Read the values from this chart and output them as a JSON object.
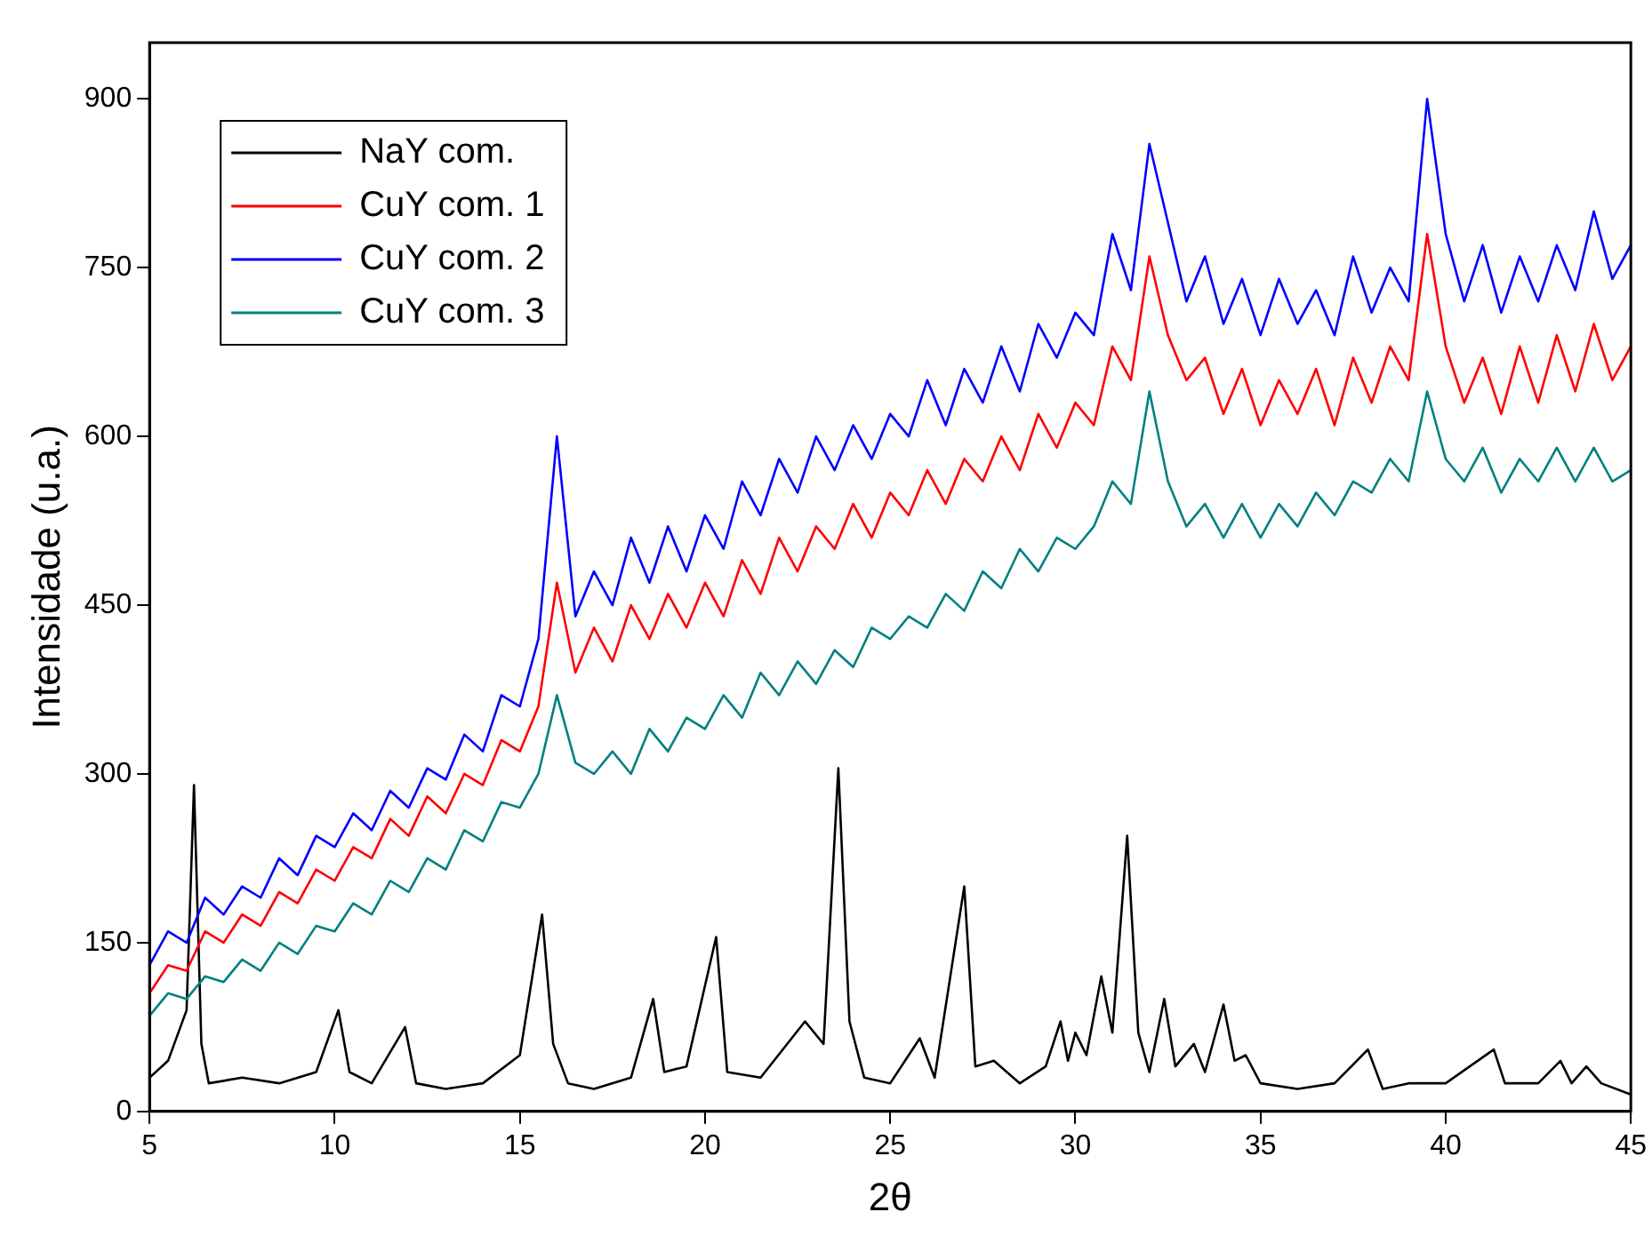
{
  "chart_data": {
    "type": "line",
    "xlabel": "2θ",
    "ylabel": "Intensidade (u.a.)",
    "xlim": [
      5,
      45
    ],
    "xticks": [
      5,
      10,
      15,
      20,
      25,
      30,
      35,
      40,
      45
    ],
    "ylim": [
      0,
      950
    ],
    "yticks": [
      0,
      150,
      300,
      450,
      600,
      750,
      900
    ],
    "grid": false,
    "legend": "top left",
    "marker": "none",
    "line_style": "solid",
    "series": [
      {
        "name": "NaY com.",
        "color": "#000000",
        "x": [
          5,
          5.5,
          6,
          6.2,
          6.4,
          6.6,
          7.5,
          8.5,
          9.5,
          10.1,
          10.4,
          11,
          11.9,
          12.2,
          13,
          14,
          15,
          15.6,
          15.9,
          16.3,
          17,
          18,
          18.6,
          18.9,
          19.5,
          20.3,
          20.6,
          21.5,
          22.7,
          23.2,
          23.6,
          23.9,
          24.3,
          25,
          25.8,
          26.2,
          27,
          27.3,
          27.8,
          28.5,
          29.2,
          29.6,
          29.8,
          30,
          30.3,
          30.7,
          31,
          31.4,
          31.7,
          32,
          32.4,
          32.7,
          33.2,
          33.5,
          34,
          34.3,
          34.6,
          35,
          36,
          37,
          37.9,
          38.3,
          39,
          40,
          41.3,
          41.6,
          42.5,
          43.1,
          43.4,
          43.8,
          44.2,
          45
        ],
        "values": [
          30,
          45,
          90,
          290,
          60,
          25,
          30,
          25,
          35,
          90,
          35,
          25,
          75,
          25,
          20,
          25,
          50,
          175,
          60,
          25,
          20,
          30,
          100,
          35,
          40,
          155,
          35,
          30,
          80,
          60,
          305,
          80,
          30,
          25,
          65,
          30,
          200,
          40,
          45,
          25,
          40,
          80,
          45,
          70,
          50,
          120,
          70,
          245,
          70,
          35,
          100,
          40,
          60,
          35,
          95,
          45,
          50,
          25,
          20,
          25,
          55,
          20,
          25,
          25,
          55,
          25,
          25,
          45,
          25,
          40,
          25,
          15
        ]
      },
      {
        "name": "CuY com. 1",
        "color": "#ff0000",
        "x": [
          5,
          5.5,
          6,
          6.5,
          7,
          7.5,
          8,
          8.5,
          9,
          9.5,
          10,
          10.5,
          11,
          11.5,
          12,
          12.5,
          13,
          13.5,
          14,
          14.5,
          15,
          15.5,
          16,
          16.5,
          17,
          17.5,
          18,
          18.5,
          19,
          19.5,
          20,
          20.5,
          21,
          21.5,
          22,
          22.5,
          23,
          23.5,
          24,
          24.5,
          25,
          25.5,
          26,
          26.5,
          27,
          27.5,
          28,
          28.5,
          29,
          29.5,
          30,
          30.5,
          31,
          31.5,
          32,
          32.5,
          33,
          33.5,
          34,
          34.5,
          35,
          35.5,
          36,
          36.5,
          37,
          37.5,
          38,
          38.5,
          39,
          39.5,
          40,
          40.5,
          41,
          41.5,
          42,
          42.5,
          43,
          43.5,
          44,
          44.5,
          45
        ],
        "values": [
          105,
          130,
          125,
          160,
          150,
          175,
          165,
          195,
          185,
          215,
          205,
          235,
          225,
          260,
          245,
          280,
          265,
          300,
          290,
          330,
          320,
          360,
          470,
          390,
          430,
          400,
          450,
          420,
          460,
          430,
          470,
          440,
          490,
          460,
          510,
          480,
          520,
          500,
          540,
          510,
          550,
          530,
          570,
          540,
          580,
          560,
          600,
          570,
          620,
          590,
          630,
          610,
          680,
          650,
          760,
          690,
          650,
          670,
          620,
          660,
          610,
          650,
          620,
          660,
          610,
          670,
          630,
          680,
          650,
          780,
          680,
          630,
          670,
          620,
          680,
          630,
          690,
          640,
          700,
          650,
          680
        ]
      },
      {
        "name": "CuY com. 2",
        "color": "#0000ff",
        "x": [
          5,
          5.5,
          6,
          6.5,
          7,
          7.5,
          8,
          8.5,
          9,
          9.5,
          10,
          10.5,
          11,
          11.5,
          12,
          12.5,
          13,
          13.5,
          14,
          14.5,
          15,
          15.5,
          16,
          16.5,
          17,
          17.5,
          18,
          18.5,
          19,
          19.5,
          20,
          20.5,
          21,
          21.5,
          22,
          22.5,
          23,
          23.5,
          24,
          24.5,
          25,
          25.5,
          26,
          26.5,
          27,
          27.5,
          28,
          28.5,
          29,
          29.5,
          30,
          30.5,
          31,
          31.5,
          32,
          32.5,
          33,
          33.5,
          34,
          34.5,
          35,
          35.5,
          36,
          36.5,
          37,
          37.5,
          38,
          38.5,
          39,
          39.5,
          40,
          40.5,
          41,
          41.5,
          42,
          42.5,
          43,
          43.5,
          44,
          44.5,
          45
        ],
        "values": [
          130,
          160,
          150,
          190,
          175,
          200,
          190,
          225,
          210,
          245,
          235,
          265,
          250,
          285,
          270,
          305,
          295,
          335,
          320,
          370,
          360,
          420,
          600,
          440,
          480,
          450,
          510,
          470,
          520,
          480,
          530,
          500,
          560,
          530,
          580,
          550,
          600,
          570,
          610,
          580,
          620,
          600,
          650,
          610,
          660,
          630,
          680,
          640,
          700,
          670,
          710,
          690,
          780,
          730,
          860,
          790,
          720,
          760,
          700,
          740,
          690,
          740,
          700,
          730,
          690,
          760,
          710,
          750,
          720,
          900,
          780,
          720,
          770,
          710,
          760,
          720,
          770,
          730,
          800,
          740,
          770
        ]
      },
      {
        "name": "CuY com. 3",
        "color": "#008080",
        "x": [
          5,
          5.5,
          6,
          6.5,
          7,
          7.5,
          8,
          8.5,
          9,
          9.5,
          10,
          10.5,
          11,
          11.5,
          12,
          12.5,
          13,
          13.5,
          14,
          14.5,
          15,
          15.5,
          16,
          16.5,
          17,
          17.5,
          18,
          18.5,
          19,
          19.5,
          20,
          20.5,
          21,
          21.5,
          22,
          22.5,
          23,
          23.5,
          24,
          24.5,
          25,
          25.5,
          26,
          26.5,
          27,
          27.5,
          28,
          28.5,
          29,
          29.5,
          30,
          30.5,
          31,
          31.5,
          32,
          32.5,
          33,
          33.5,
          34,
          34.5,
          35,
          35.5,
          36,
          36.5,
          37,
          37.5,
          38,
          38.5,
          39,
          39.5,
          40,
          40.5,
          41,
          41.5,
          42,
          42.5,
          43,
          43.5,
          44,
          44.5,
          45
        ],
        "values": [
          85,
          105,
          100,
          120,
          115,
          135,
          125,
          150,
          140,
          165,
          160,
          185,
          175,
          205,
          195,
          225,
          215,
          250,
          240,
          275,
          270,
          300,
          370,
          310,
          300,
          320,
          300,
          340,
          320,
          350,
          340,
          370,
          350,
          390,
          370,
          400,
          380,
          410,
          395,
          430,
          420,
          440,
          430,
          460,
          445,
          480,
          465,
          500,
          480,
          510,
          500,
          520,
          560,
          540,
          640,
          560,
          520,
          540,
          510,
          540,
          510,
          540,
          520,
          550,
          530,
          560,
          550,
          580,
          560,
          640,
          580,
          560,
          590,
          550,
          580,
          560,
          590,
          560,
          590,
          560,
          570
        ]
      }
    ]
  }
}
